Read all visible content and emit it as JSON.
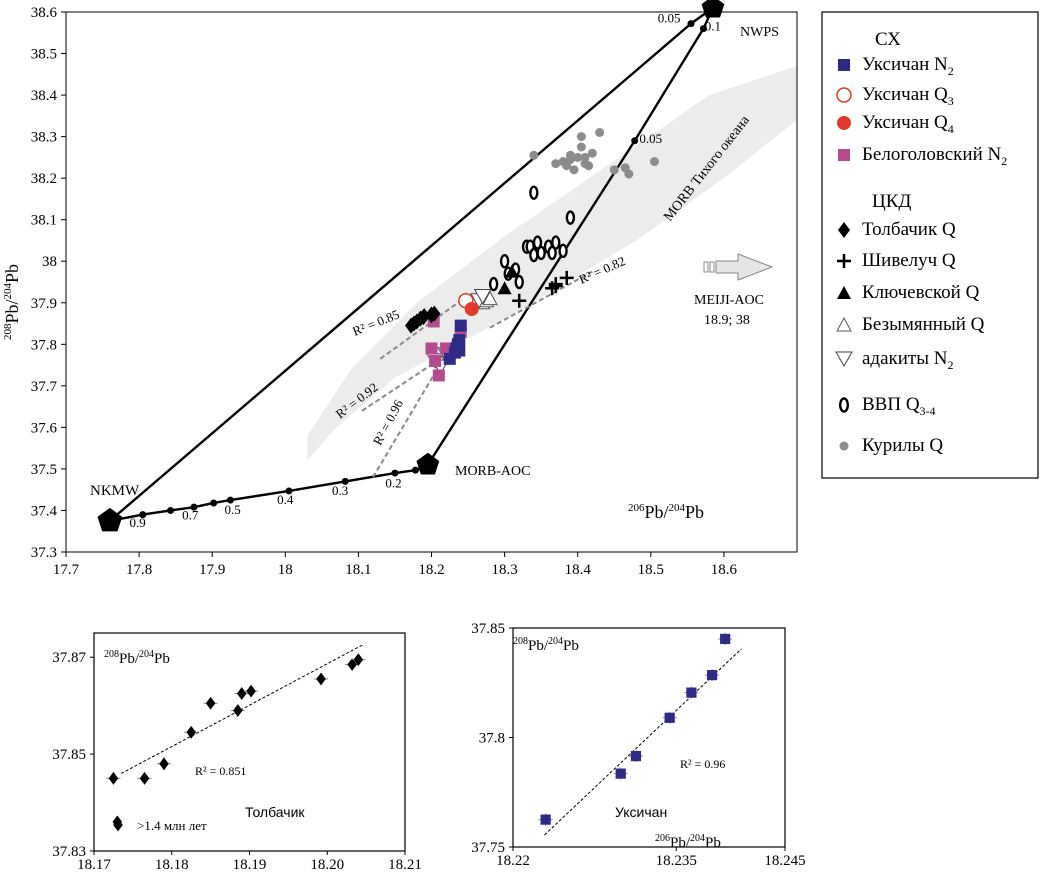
{
  "chart_data": [
    {
      "type": "scatter",
      "xlim": [
        17.7,
        18.7
      ],
      "ylim": [
        37.3,
        38.6
      ],
      "x_ticks": [
        17.7,
        17.8,
        17.9,
        18.0,
        18.1,
        18.2,
        18.3,
        18.4,
        18.5,
        18.6
      ],
      "y_ticks": [
        37.3,
        37.4,
        37.5,
        37.6,
        37.7,
        37.8,
        37.9,
        38.0,
        38.1,
        38.2,
        38.3,
        38.4,
        38.5,
        38.6
      ],
      "x_tick_labels": [
        "17.7",
        "17.8",
        "17.9",
        "18",
        "18.1",
        "18.2",
        "18.3",
        "18.4",
        "18.5",
        "18.6"
      ],
      "y_tick_labels": [
        "37.3",
        "37.4",
        "37.5",
        "37.6",
        "37.7",
        "37.8",
        "37.9",
        "38",
        "38.1",
        "38.2",
        "38.3",
        "38.4",
        "38.5",
        "38.6"
      ],
      "ylabel": {
        "base": "Pb/",
        "sup1": "208",
        "sup2": "204",
        "tail": "Pb"
      },
      "xlabel": {
        "sup1": "206",
        "mid": "Pb/",
        "sup2": "204",
        "tail": "Pb"
      },
      "grid": false,
      "legend_position": "right",
      "endmembers": {
        "NKMW": {
          "label": "NKMW",
          "x": 17.76,
          "y": 37.375
        },
        "MORB_AOC": {
          "label": "MORB-AOC",
          "x": 18.195,
          "y": 37.51
        },
        "NWPS": {
          "label": "NWPS",
          "x": 18.585,
          "y": 38.61
        }
      },
      "region_label": "MORB Тихого океана",
      "meiji": {
        "label": "MEIJI-AOC",
        "value": "18.9; 38"
      },
      "mixing_curves": {
        "nkmw_morb": {
          "points": [
            [
              17.76,
              37.375
            ],
            [
              17.805,
              37.39
            ],
            [
              17.843,
              37.4
            ],
            [
              17.875,
              37.408
            ],
            [
              17.902,
              37.418
            ],
            [
              17.925,
              37.425
            ],
            [
              18.005,
              37.447
            ],
            [
              18.082,
              37.47
            ],
            [
              18.15,
              37.49
            ],
            [
              18.178,
              37.497
            ],
            [
              18.195,
              37.51
            ]
          ],
          "labels": [
            {
              "text": "0.9",
              "x": 17.798,
              "y": 37.36
            },
            {
              "text": "0.7",
              "x": 17.87,
              "y": 37.378
            },
            {
              "text": "0.5",
              "x": 17.928,
              "y": 37.392
            },
            {
              "text": "0.4",
              "x": 18.0,
              "y": 37.415
            },
            {
              "text": "0.3",
              "x": 18.075,
              "y": 37.437
            },
            {
              "text": "0.2",
              "x": 18.148,
              "y": 37.455
            }
          ]
        },
        "nkmw_nwps": {
          "points": [
            [
              17.76,
              37.375
            ],
            [
              18.555,
              38.572
            ],
            [
              18.585,
              38.61
            ]
          ],
          "labels": [
            {
              "text": "0.05",
              "x": 18.525,
              "y": 38.575
            }
          ]
        },
        "morb_nwps": {
          "points": [
            [
              18.195,
              37.51
            ],
            [
              18.478,
              38.29
            ],
            [
              18.572,
              38.56
            ],
            [
              18.585,
              38.61
            ]
          ],
          "labels": [
            {
              "text": "0.05",
              "x": 18.5,
              "y": 38.285
            },
            {
              "text": "0.1",
              "x": 18.585,
              "y": 38.555
            }
          ]
        }
      },
      "regressions": [
        {
          "x1": 18.13,
          "y1": 37.765,
          "x2": 18.24,
          "y2": 37.905,
          "r2": "R² = 0.85",
          "lx": 18.095,
          "ly": 37.82,
          "rot": -22
        },
        {
          "x1": 18.105,
          "y1": 37.64,
          "x2": 18.225,
          "y2": 37.78,
          "r2": "R² = 0.92",
          "lx": 18.075,
          "ly": 37.62,
          "rot": -38
        },
        {
          "x1": 18.12,
          "y1": 37.48,
          "x2": 18.228,
          "y2": 37.8,
          "r2": "R² = 0.96",
          "lx": 18.13,
          "ly": 37.555,
          "rot": -62
        },
        {
          "x1": 18.28,
          "y1": 37.84,
          "x2": 18.42,
          "y2": 37.975,
          "r2": "R² = 0.82",
          "lx": 18.405,
          "ly": 37.945,
          "rot": -24
        }
      ],
      "series": [
        {
          "name": "Уксичан N",
          "sub": "2",
          "marker": "square",
          "color": "#2e2a86",
          "x": [
            18.225,
            18.232,
            18.238,
            18.234,
            18.236,
            18.238,
            18.24
          ],
          "y": [
            37.765,
            37.78,
            37.785,
            37.79,
            37.8,
            37.81,
            37.845
          ]
        },
        {
          "name": "Уксичан Q",
          "sub": "3",
          "marker": "open-circle",
          "color": "#e23a2a",
          "x": [
            18.247
          ],
          "y": [
            37.905
          ]
        },
        {
          "name": "Уксичан Q",
          "sub": "4",
          "marker": "filled-circle",
          "color": "#e23a2a",
          "x": [
            18.255
          ],
          "y": [
            37.885
          ]
        },
        {
          "name": "Белоголовский N",
          "sub": "2",
          "marker": "square",
          "color": "#b54b8e",
          "x": [
            18.2,
            18.205,
            18.21,
            18.22,
            18.24,
            18.203
          ],
          "y": [
            37.79,
            37.76,
            37.725,
            37.79,
            37.83,
            37.855
          ]
        },
        {
          "name": "Толбачик  Q",
          "sub": "",
          "marker": "diamond",
          "color": "#000000",
          "x": [
            18.172,
            18.176,
            18.18,
            18.185,
            18.189,
            18.19,
            18.2,
            18.204,
            18.2
          ],
          "y": [
            37.845,
            37.85,
            37.855,
            37.862,
            37.865,
            37.868,
            37.872,
            37.874,
            37.87
          ]
        },
        {
          "name": "Шивелуч Q",
          "sub": "",
          "marker": "plus",
          "color": "#000000",
          "x": [
            18.32,
            18.365,
            18.37,
            18.385,
            18.37
          ],
          "y": [
            37.905,
            37.935,
            37.945,
            37.96,
            37.94
          ]
        },
        {
          "name": "Ключевской  Q",
          "sub": "",
          "marker": "filled-triangle",
          "color": "#000000",
          "x": [
            18.3,
            18.31
          ],
          "y": [
            37.935,
            37.975
          ]
        },
        {
          "name": "Безымянный  Q",
          "sub": "",
          "marker": "open-triangle",
          "color": "#000000",
          "x": [
            18.27,
            18.275,
            18.28
          ],
          "y": [
            37.9,
            37.905,
            37.91
          ]
        },
        {
          "name": "адакиты N",
          "sub": "2",
          "marker": "open-triangle-down",
          "color": "#000000",
          "x": [
            18.205,
            18.212,
            18.22,
            18.265,
            18.27
          ],
          "y": [
            37.76,
            37.745,
            37.775,
            37.905,
            37.915
          ]
        },
        {
          "name": "ВВП Q",
          "sub": "3-4",
          "marker": "open-ellipse",
          "color": "#000000",
          "x": [
            18.285,
            18.3,
            18.305,
            18.315,
            18.32,
            18.33,
            18.335,
            18.34,
            18.345,
            18.35,
            18.36,
            18.365,
            18.37,
            18.38,
            18.39,
            18.34
          ],
          "y": [
            37.945,
            38.0,
            37.97,
            37.98,
            37.95,
            38.035,
            38.035,
            38.015,
            38.045,
            38.02,
            38.035,
            38.02,
            38.045,
            38.025,
            38.105,
            38.165
          ]
        },
        {
          "name": "Курилы Q",
          "sub": "",
          "marker": "grey-dot",
          "color": "#888888",
          "x": [
            18.34,
            18.37,
            18.38,
            18.385,
            18.39,
            18.395,
            18.4,
            18.405,
            18.41,
            18.415,
            18.42,
            18.405,
            18.43,
            18.45,
            18.465,
            18.47,
            18.505,
            18.39,
            18.41
          ],
          "y": [
            38.255,
            38.235,
            38.24,
            38.23,
            38.255,
            38.22,
            38.25,
            38.3,
            38.25,
            38.23,
            38.26,
            38.275,
            38.31,
            38.22,
            38.225,
            38.21,
            38.24,
            38.245,
            38.235
          ]
        }
      ],
      "legend": {
        "group1": "СХ",
        "group2": "ЦКД"
      }
    },
    {
      "type": "scatter",
      "title": "Толбачик",
      "ylabel": {
        "sup1": "208",
        "mid": "Pb/",
        "sup2": "204",
        "tail": "Pb"
      },
      "xlim": [
        18.17,
        18.21
      ],
      "ylim": [
        37.83,
        37.875
      ],
      "x_ticks": [
        18.17,
        18.18,
        18.19,
        18.2,
        18.21
      ],
      "x_tick_labels": [
        "18.17",
        "18.18",
        "18.19",
        "18.20",
        "18.21"
      ],
      "y_ticks": [
        37.83,
        37.85,
        37.87
      ],
      "y_tick_labels": [
        "37.83",
        "37.85",
        "37.87"
      ],
      "r2": "R² = 0.851",
      "fit": {
        "x1": 18.1735,
        "y1": 37.846,
        "x2": 18.2045,
        "y2": 37.8725
      },
      "note": ">1.4 млн лет",
      "points": [
        {
          "x": 18.1725,
          "y": 37.845
        },
        {
          "x": 18.1765,
          "y": 37.845
        },
        {
          "x": 18.179,
          "y": 37.848
        },
        {
          "x": 18.1825,
          "y": 37.8545
        },
        {
          "x": 18.185,
          "y": 37.8605
        },
        {
          "x": 18.1885,
          "y": 37.859
        },
        {
          "x": 18.189,
          "y": 37.8625
        },
        {
          "x": 18.1902,
          "y": 37.863
        },
        {
          "x": 18.1992,
          "y": 37.8655
        },
        {
          "x": 18.2032,
          "y": 37.8685
        },
        {
          "x": 18.204,
          "y": 37.8695
        }
      ],
      "old_point": {
        "x": 18.173,
        "y": 37.836
      }
    },
    {
      "type": "scatter",
      "title": "Уксичан",
      "ylabel": {
        "sup1": "208",
        "mid": "Pb/",
        "sup2": "204",
        "tail": "Pb"
      },
      "xlabel": {
        "sup1": "206",
        "mid": "Pb/",
        "sup2": "204",
        "tail": "Pb"
      },
      "xlim": [
        18.22,
        18.245
      ],
      "ylim": [
        37.75,
        37.85
      ],
      "x_ticks": [
        18.22,
        18.235,
        18.245
      ],
      "x_tick_labels": [
        "18.22",
        "18.235",
        "18.245"
      ],
      "y_ticks": [
        37.75,
        37.8,
        37.85
      ],
      "y_tick_labels": [
        "37.75",
        "37.8",
        "37.85"
      ],
      "r2": "R² = 0.96",
      "fit": {
        "x1": 18.2229,
        "y1": 37.7555,
        "x2": 18.241,
        "y2": 37.8405
      },
      "points": [
        {
          "x": 18.223,
          "y": 37.7625
        },
        {
          "x": 18.2299,
          "y": 37.7835
        },
        {
          "x": 18.2313,
          "y": 37.7915
        },
        {
          "x": 18.2344,
          "y": 37.809
        },
        {
          "x": 18.2364,
          "y": 37.8205
        },
        {
          "x": 18.2383,
          "y": 37.8285
        },
        {
          "x": 18.2395,
          "y": 37.845
        }
      ]
    }
  ]
}
